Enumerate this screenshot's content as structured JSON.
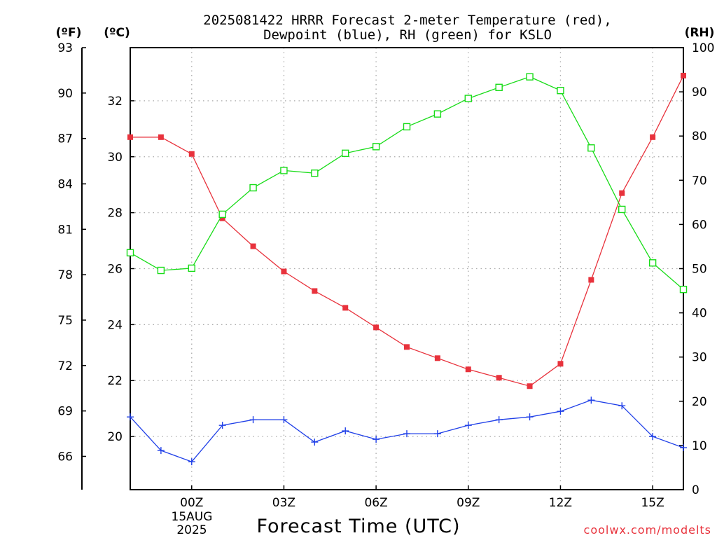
{
  "title_line1": "2025081422 HRRR Forecast 2-meter Temperature (red),",
  "title_line2": "Dewpoint (blue), RH (green) for KSLO",
  "unit_f": "(ºF)",
  "unit_c": "(ºC)",
  "unit_rh": "(RH)",
  "date_day": "15AUG",
  "date_year": "2025",
  "credit": "coolwx.com/modelts",
  "chart_data": {
    "type": "line",
    "title": "2025081422 HRRR Forecast 2-meter Temperature (red), Dewpoint (blue), RH (green) for KSLO",
    "xlabel": "Forecast Time (UTC)",
    "x": [
      "22Z",
      "23Z",
      "00Z",
      "01Z",
      "02Z",
      "03Z",
      "04Z",
      "05Z",
      "06Z",
      "07Z",
      "08Z",
      "09Z",
      "10Z",
      "11Z",
      "12Z",
      "13Z",
      "14Z",
      "15Z",
      "16Z"
    ],
    "x_tick_labels": [
      "00Z",
      "03Z",
      "06Z",
      "09Z",
      "12Z",
      "15Z"
    ],
    "x_tick_index": [
      2,
      5,
      8,
      11,
      14,
      17
    ],
    "y_left_f": {
      "label": "(ºF)",
      "ticks": [
        66,
        69,
        72,
        75,
        78,
        81,
        84,
        87,
        90,
        93
      ],
      "range": [
        63.8,
        93
      ]
    },
    "y_left_c": {
      "label": "(ºC)",
      "ticks": [
        20,
        22,
        24,
        26,
        28,
        30,
        32
      ],
      "range": [
        18.1,
        33.9
      ]
    },
    "y_right": {
      "label": "(RH)",
      "ticks": [
        0,
        10,
        20,
        30,
        40,
        50,
        60,
        70,
        80,
        90,
        100
      ],
      "range": [
        0,
        100
      ]
    },
    "grid": true,
    "series": [
      {
        "name": "Temperature",
        "axis": "c",
        "color": "#e8323c",
        "marker": "filled-square",
        "values": [
          30.7,
          30.7,
          30.1,
          27.8,
          26.8,
          25.9,
          25.2,
          24.6,
          23.9,
          23.2,
          22.8,
          22.4,
          22.1,
          21.8,
          22.6,
          25.6,
          28.7,
          30.7,
          32.9
        ]
      },
      {
        "name": "Dewpoint",
        "axis": "c",
        "color": "#2040e8",
        "marker": "plus",
        "values": [
          20.7,
          19.5,
          19.1,
          20.4,
          20.6,
          20.6,
          19.8,
          20.2,
          19.9,
          20.1,
          20.1,
          20.4,
          20.6,
          20.7,
          20.9,
          21.3,
          21.1,
          20.0,
          19.6
        ]
      },
      {
        "name": "RH",
        "axis": "rh",
        "color": "#18dc18",
        "marker": "open-square",
        "values": [
          53.6,
          49.6,
          50.1,
          62.3,
          68.3,
          72.2,
          71.6,
          76.1,
          77.6,
          82.1,
          85.0,
          88.5,
          91.0,
          93.4,
          90.3,
          77.3,
          63.4,
          51.3,
          45.3
        ]
      }
    ]
  }
}
